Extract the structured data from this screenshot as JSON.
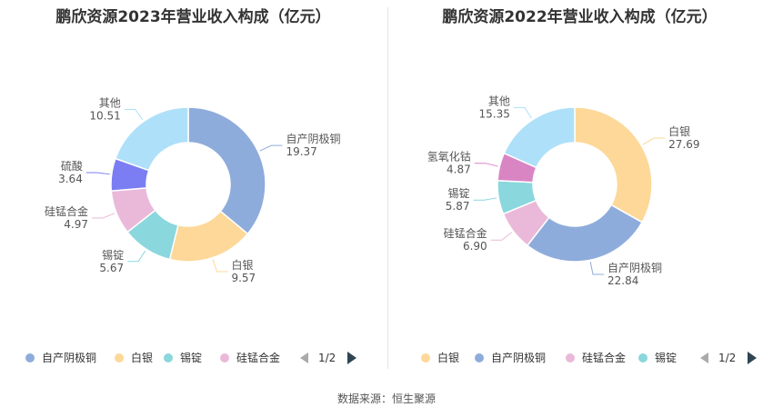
{
  "footer": {
    "source_label": "数据来源：恒生聚源"
  },
  "charts": [
    {
      "title": "鹏欣资源2023年营业收入构成（亿元）",
      "legend_page": "1/2",
      "chart_data": {
        "type": "pie",
        "slices": [
          {
            "name": "自产阴极铜",
            "value": 19.37,
            "label": "19.37",
            "color": "#8eacdb"
          },
          {
            "name": "白银",
            "value": 9.57,
            "label": "9.57",
            "color": "#fdd898"
          },
          {
            "name": "锡锭",
            "value": 5.67,
            "label": "5.67",
            "color": "#8ad7dd"
          },
          {
            "name": "硅锰合金",
            "value": 4.97,
            "label": "4.97",
            "color": "#eab9d9"
          },
          {
            "name": "硫酸",
            "value": 3.64,
            "label": "3.64",
            "color": "#7b7ef2"
          },
          {
            "name": "其他",
            "value": 10.51,
            "label": "10.51",
            "color": "#aee0f9"
          }
        ],
        "legend": [
          "自产阴极铜",
          "白银",
          "锡锭",
          "硅锰合金"
        ]
      }
    },
    {
      "title": "鹏欣资源2022年营业收入构成（亿元）",
      "legend_page": "1/2",
      "chart_data": {
        "type": "pie",
        "slices": [
          {
            "name": "白银",
            "value": 27.69,
            "label": "27.69",
            "color": "#fdd898"
          },
          {
            "name": "自产阴极铜",
            "value": 22.84,
            "label": "22.84",
            "color": "#8eacdb"
          },
          {
            "name": "硅锰合金",
            "value": 6.9,
            "label": "6.90",
            "color": "#eab9d9"
          },
          {
            "name": "锡锭",
            "value": 5.87,
            "label": "5.87",
            "color": "#8ad7dd"
          },
          {
            "name": "氢氧化钴",
            "value": 4.87,
            "label": "4.87",
            "color": "#d985c4"
          },
          {
            "name": "其他",
            "value": 15.35,
            "label": "15.35",
            "color": "#aee0f9"
          }
        ],
        "legend": [
          "白银",
          "自产阴极铜",
          "硅锰合金",
          "锡锭"
        ]
      }
    }
  ]
}
